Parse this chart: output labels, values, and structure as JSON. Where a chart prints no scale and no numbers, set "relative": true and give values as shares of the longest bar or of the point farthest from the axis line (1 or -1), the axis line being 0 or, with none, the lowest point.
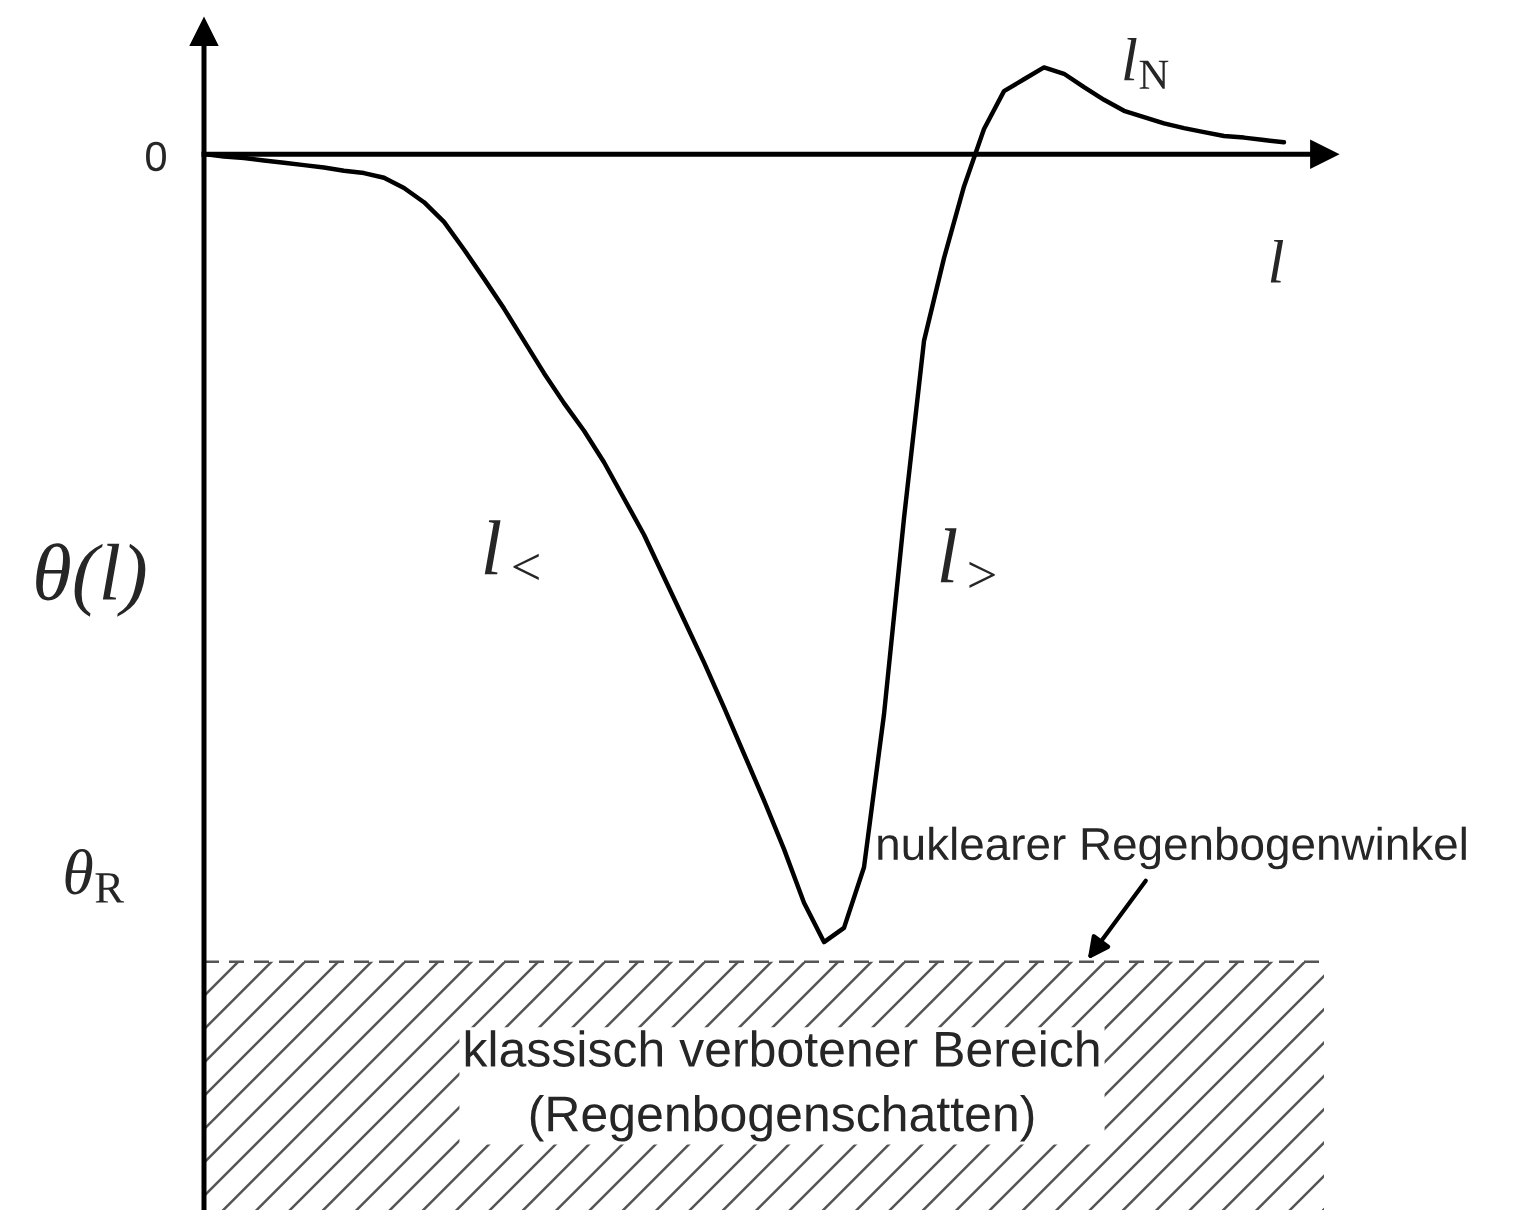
{
  "chart_data": {
    "type": "line",
    "relative": true,
    "color": "#000000",
    "xlabel": "l",
    "ylabel": "θ(l)",
    "categories": [
      null,
      null,
      null,
      null,
      null,
      null,
      null,
      null,
      null,
      null,
      null,
      null,
      null,
      null,
      null,
      null,
      null,
      null,
      null,
      null,
      null,
      null,
      null,
      null,
      null,
      null,
      null,
      null,
      null,
      null,
      null,
      null,
      null,
      null,
      null,
      null,
      null,
      null,
      null,
      null,
      null,
      null,
      null,
      null,
      null,
      null,
      null,
      null,
      null,
      null,
      null,
      null,
      null,
      null,
      null
    ],
    "values": [
      0,
      -0.003,
      -0.005,
      -0.008,
      -0.011,
      -0.014,
      -0.017,
      -0.021,
      -0.024,
      -0.03,
      -0.043,
      -0.061,
      -0.086,
      -0.121,
      -0.158,
      -0.196,
      -0.237,
      -0.278,
      -0.316,
      -0.351,
      -0.391,
      -0.437,
      -0.483,
      -0.537,
      -0.591,
      -0.645,
      -0.702,
      -0.761,
      -0.82,
      -0.882,
      -0.95,
      -1,
      -0.982,
      -0.905,
      -0.711,
      -0.462,
      -0.237,
      -0.132,
      -0.041,
      0.032,
      0.08,
      0.095,
      0.11,
      0.102,
      0.085,
      0.069,
      0.055,
      0.047,
      0.039,
      0.033,
      0.028,
      0.023,
      0.021,
      0.018,
      0.015
    ],
    "ref_lines": [
      {
        "axis": "y",
        "value": -1.025,
        "label": "θ$_{R}$",
        "line_style": "dashed",
        "color": "#555555"
      }
    ],
    "bands": [
      {
        "axis": "y",
        "from": -1.025,
        "to": -1.34,
        "label": "klassisch verbotener Bereich\n(Regenbogenschatten)",
        "color": "#555555"
      }
    ],
    "annotations": [
      "0",
      "l$_{<}$",
      "l$_{>}$",
      "l$_{N}$",
      {
        "text": "nuklearer Regenbogenwinkel",
        "y": -1.025
      }
    ]
  }
}
